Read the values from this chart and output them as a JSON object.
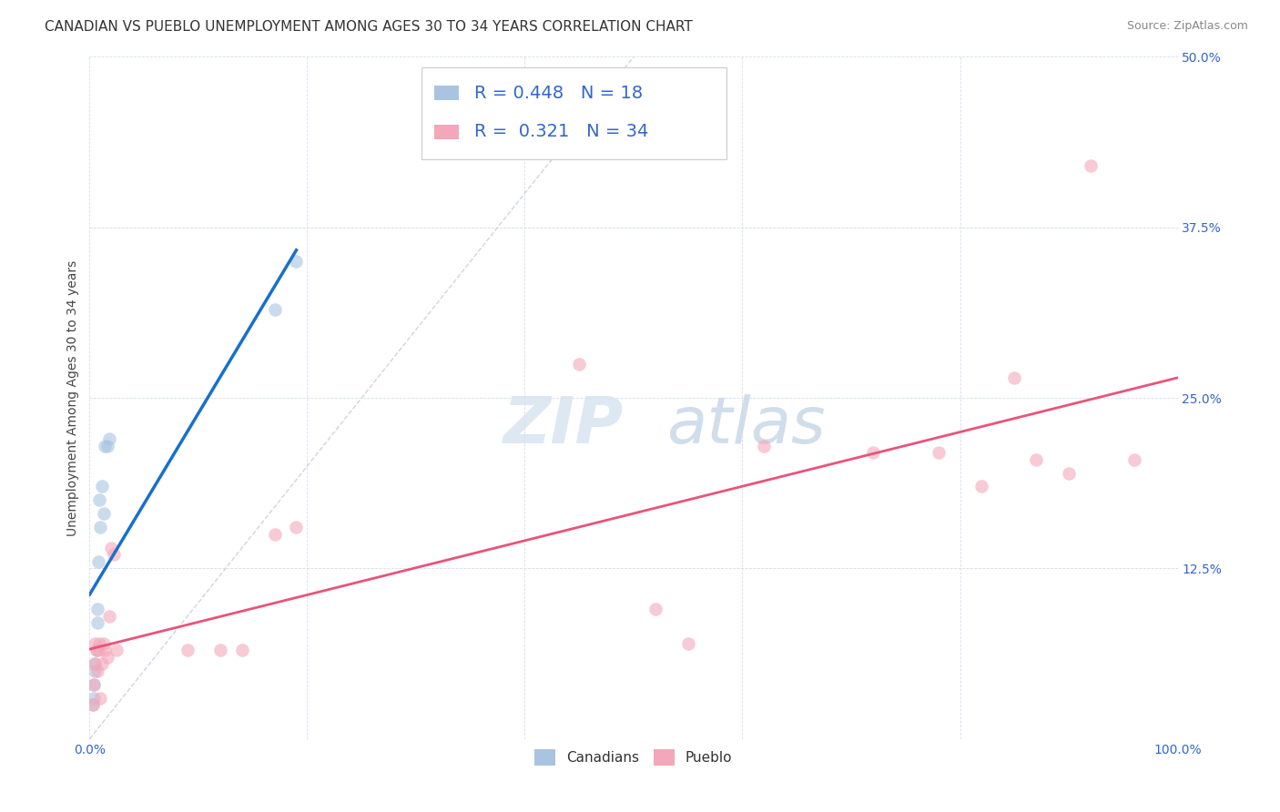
{
  "title": "CANADIAN VS PUEBLO UNEMPLOYMENT AMONG AGES 30 TO 34 YEARS CORRELATION CHART",
  "source": "Source: ZipAtlas.com",
  "ylabel": "Unemployment Among Ages 30 to 34 years",
  "xlim": [
    0,
    1.0
  ],
  "ylim": [
    0,
    0.5
  ],
  "xticks": [
    0.0,
    0.2,
    0.4,
    0.6,
    0.8,
    1.0
  ],
  "xticklabels": [
    "0.0%",
    "",
    "",
    "",
    "",
    "100.0%"
  ],
  "yticks": [
    0.0,
    0.125,
    0.25,
    0.375,
    0.5
  ],
  "yticklabels": [
    "",
    "12.5%",
    "25.0%",
    "37.5%",
    "50.0%"
  ],
  "canadians_x": [
    0.003,
    0.004,
    0.004,
    0.005,
    0.005,
    0.006,
    0.007,
    0.007,
    0.008,
    0.009,
    0.01,
    0.011,
    0.013,
    0.014,
    0.016,
    0.018,
    0.17,
    0.19
  ],
  "canadians_y": [
    0.025,
    0.03,
    0.04,
    0.05,
    0.055,
    0.065,
    0.085,
    0.095,
    0.13,
    0.175,
    0.155,
    0.185,
    0.165,
    0.215,
    0.215,
    0.22,
    0.315,
    0.35
  ],
  "pueblo_x": [
    0.003,
    0.004,
    0.005,
    0.005,
    0.006,
    0.007,
    0.008,
    0.009,
    0.01,
    0.011,
    0.013,
    0.014,
    0.016,
    0.018,
    0.02,
    0.022,
    0.025,
    0.09,
    0.12,
    0.14,
    0.17,
    0.19,
    0.45,
    0.52,
    0.55,
    0.62,
    0.72,
    0.78,
    0.82,
    0.85,
    0.87,
    0.9,
    0.92,
    0.96
  ],
  "pueblo_y": [
    0.025,
    0.04,
    0.055,
    0.07,
    0.065,
    0.05,
    0.065,
    0.07,
    0.03,
    0.055,
    0.07,
    0.065,
    0.06,
    0.09,
    0.14,
    0.135,
    0.065,
    0.065,
    0.065,
    0.065,
    0.15,
    0.155,
    0.275,
    0.095,
    0.07,
    0.215,
    0.21,
    0.21,
    0.185,
    0.265,
    0.205,
    0.195,
    0.42,
    0.205
  ],
  "blue_color": "#a8c4e0",
  "pink_color": "#f4a7b9",
  "blue_line_color": "#1a6fcc",
  "pink_line_color": "#e8547a",
  "ref_line_color": "#c8cdd8",
  "legend_color": "#3366cc",
  "r_canadian": "0.448",
  "n_canadian": "18",
  "r_pueblo": "0.321",
  "n_pueblo": "34",
  "title_fontsize": 11,
  "axis_tick_fontsize": 10,
  "legend_fontsize": 14,
  "source_fontsize": 9,
  "marker_size": 110,
  "marker_alpha": 0.6
}
